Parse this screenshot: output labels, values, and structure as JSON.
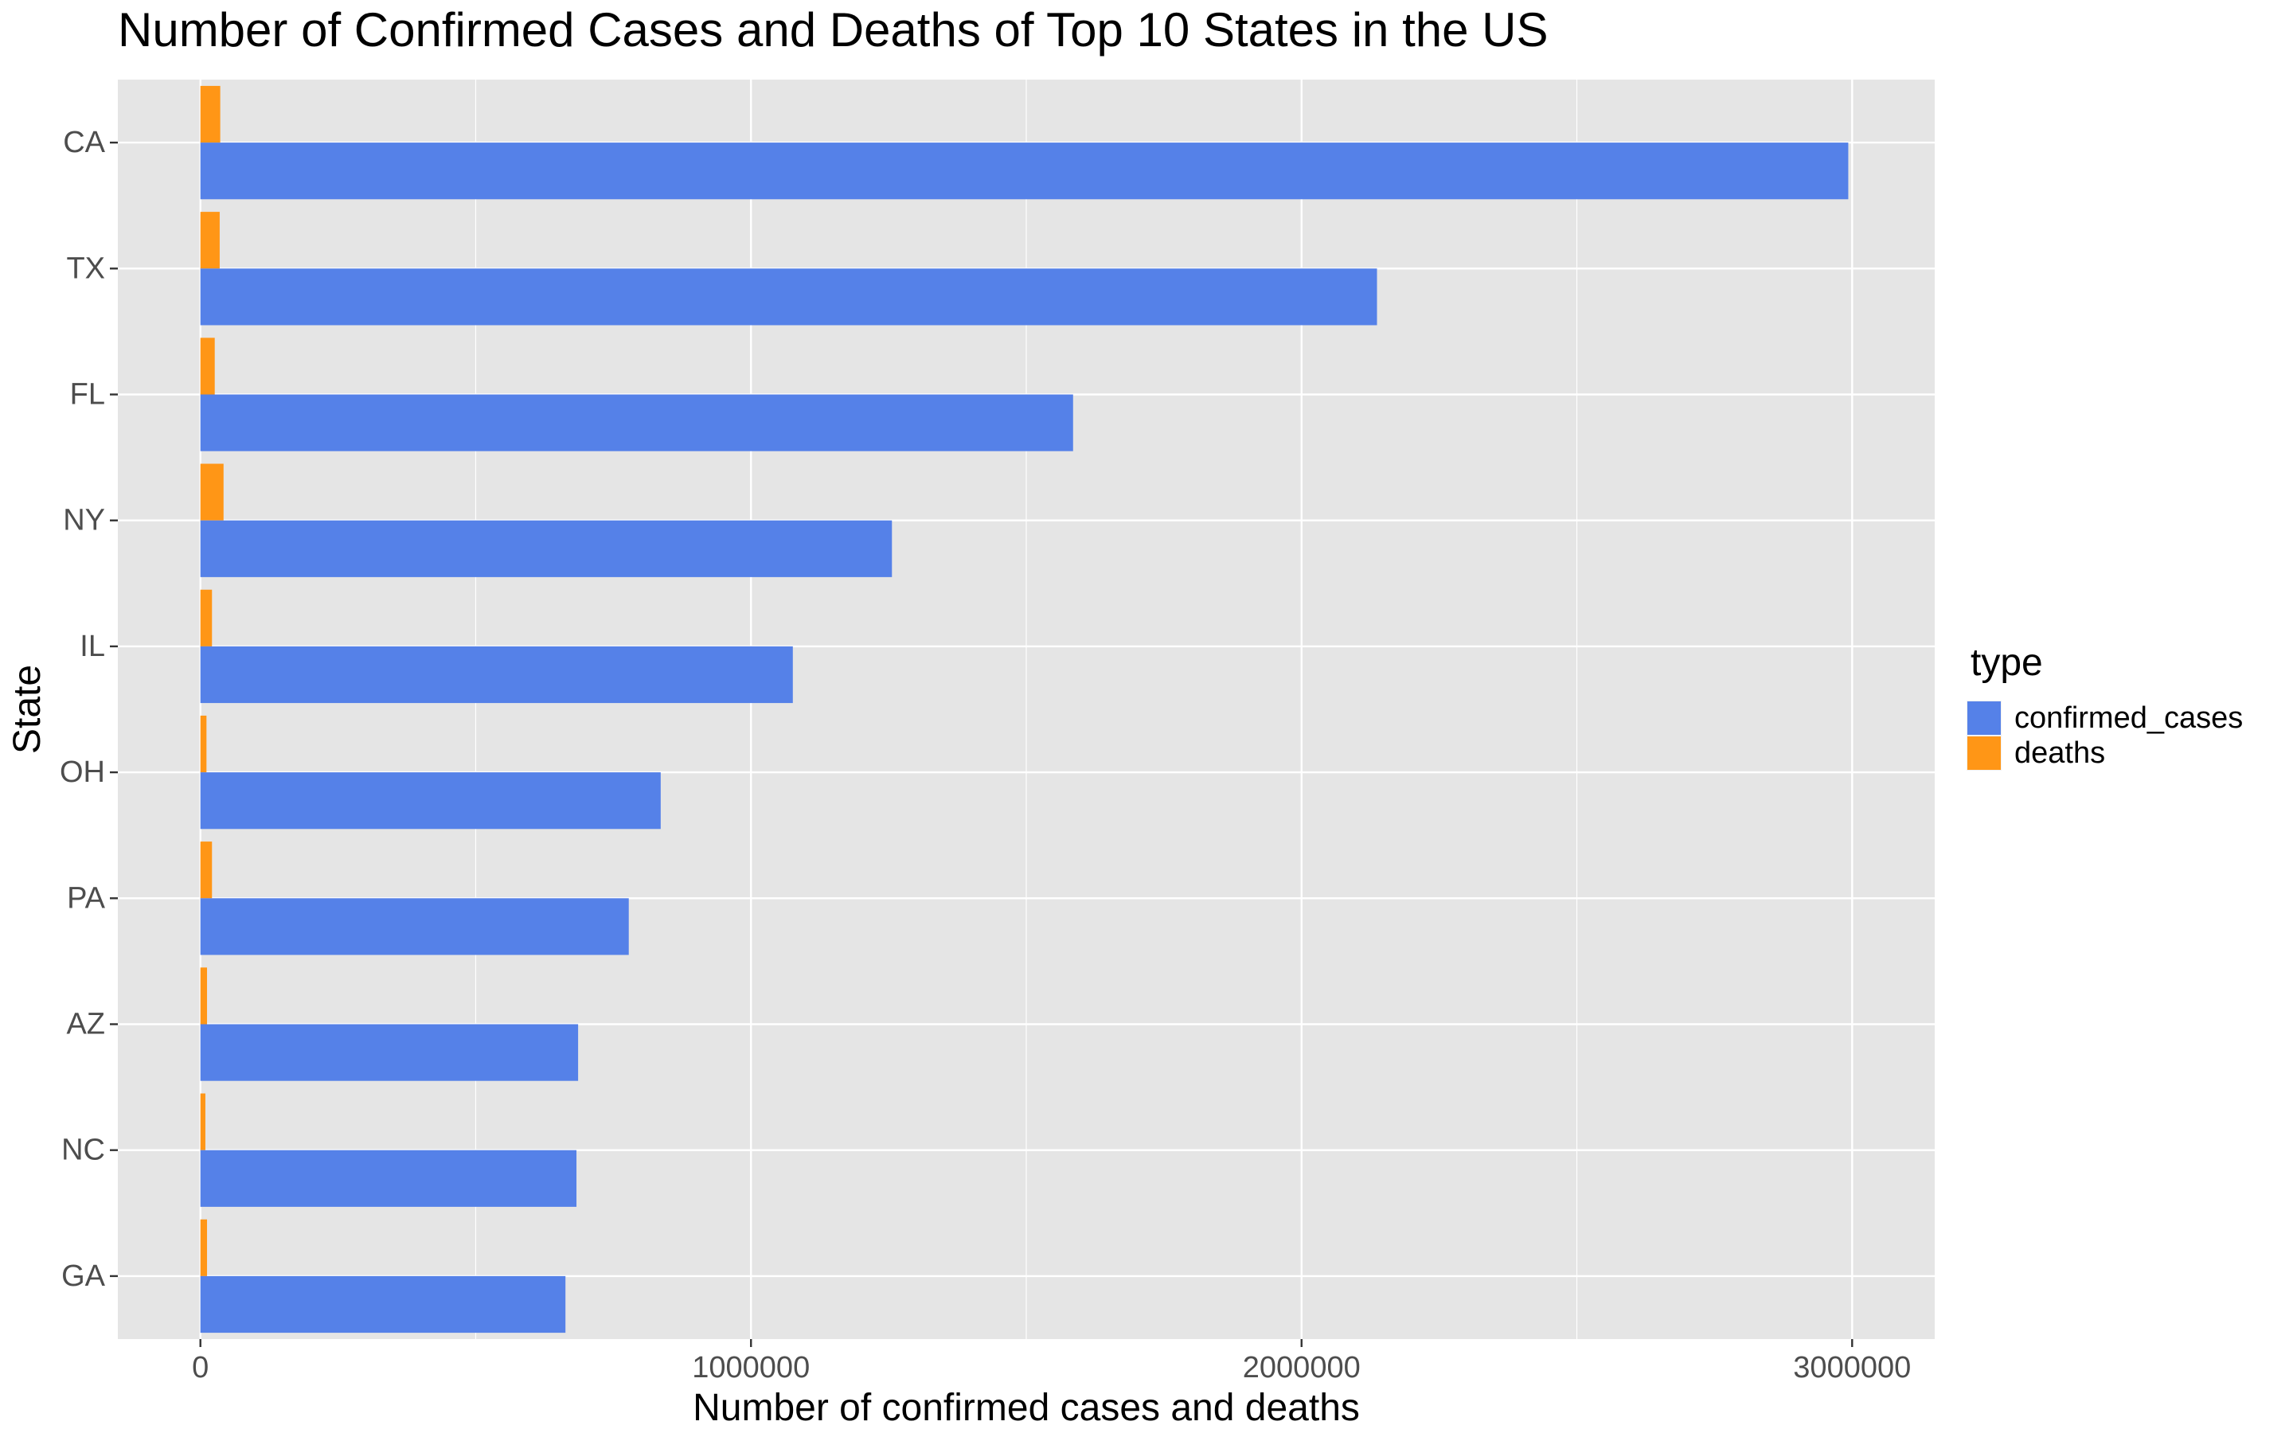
{
  "chart_data": {
    "type": "bar",
    "orientation": "horizontal",
    "title": "Number of Confirmed Cases and Deaths of Top 10 States in the US",
    "xlabel": "Number of confirmed cases and deaths",
    "ylabel": "State",
    "categories": [
      "CA",
      "TX",
      "FL",
      "NY",
      "IL",
      "OH",
      "PA",
      "AZ",
      "NC",
      "GA"
    ],
    "series": [
      {
        "name": "confirmed_cases",
        "color": "#5581e8",
        "values": [
          2993000,
          2137000,
          1585000,
          1256000,
          1076000,
          836000,
          778000,
          686000,
          683000,
          663000
        ]
      },
      {
        "name": "deaths",
        "color": "#ff9616",
        "values": [
          36000,
          35000,
          26000,
          42000,
          21000,
          11000,
          21000,
          12000,
          9000,
          12000
        ]
      }
    ],
    "x_ticks": [
      "0",
      "1000000",
      "2000000",
      "3000000"
    ],
    "x_tick_values": [
      0,
      1000000,
      2000000,
      3000000
    ],
    "xlim": [
      -150000,
      3150000
    ],
    "grid": true,
    "legend": {
      "title": "type",
      "position": "right",
      "entries": [
        "confirmed_cases",
        "deaths"
      ]
    },
    "panel_background": "#e5e5e5",
    "gridline_color": "#ffffff"
  }
}
